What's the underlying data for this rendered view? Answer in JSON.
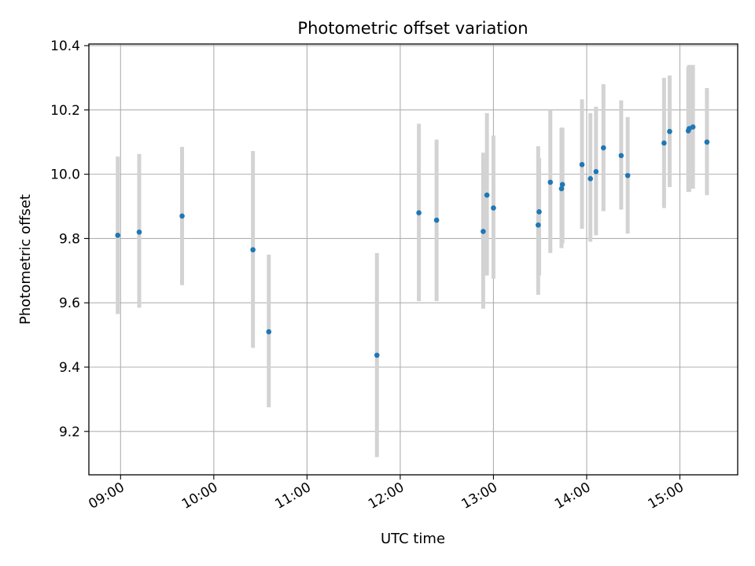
{
  "chart_data": {
    "type": "scatter",
    "title": "Photometric offset variation",
    "xlabel": "UTC time",
    "ylabel": "Photometric offset",
    "xlim": [
      8.66,
      15.62
    ],
    "ylim": [
      9.065,
      10.405
    ],
    "grid": true,
    "x_ticks": [
      {
        "value": 9,
        "label": "09:00"
      },
      {
        "value": 10,
        "label": "10:00"
      },
      {
        "value": 11,
        "label": "11:00"
      },
      {
        "value": 12,
        "label": "12:00"
      },
      {
        "value": 13,
        "label": "13:00"
      },
      {
        "value": 14,
        "label": "14:00"
      },
      {
        "value": 15,
        "label": "15:00"
      }
    ],
    "y_ticks": [
      {
        "value": 9.2,
        "label": "9.2"
      },
      {
        "value": 9.4,
        "label": "9.4"
      },
      {
        "value": 9.6,
        "label": "9.6"
      },
      {
        "value": 9.8,
        "label": "9.8"
      },
      {
        "value": 10.0,
        "label": "10.0"
      },
      {
        "value": 10.2,
        "label": "10.2"
      },
      {
        "value": 10.4,
        "label": "10.4"
      }
    ],
    "marker_color": "#1f77b4",
    "errorbar_color": "#d3d3d3",
    "points": [
      {
        "time": "08:58",
        "x": 8.97,
        "y": 9.81,
        "low": 9.565,
        "high": 10.055
      },
      {
        "time": "09:12",
        "x": 9.2,
        "y": 9.82,
        "low": 9.585,
        "high": 10.063
      },
      {
        "time": "09:39",
        "x": 9.66,
        "y": 9.87,
        "low": 9.655,
        "high": 10.085
      },
      {
        "time": "10:24",
        "x": 10.42,
        "y": 9.765,
        "low": 9.46,
        "high": 10.072
      },
      {
        "time": "10:35",
        "x": 10.59,
        "y": 9.51,
        "low": 9.275,
        "high": 9.75
      },
      {
        "time": "11:45",
        "x": 11.75,
        "y": 9.437,
        "low": 9.12,
        "high": 9.755
      },
      {
        "time": "12:12",
        "x": 12.2,
        "y": 9.88,
        "low": 9.605,
        "high": 10.157
      },
      {
        "time": "12:24",
        "x": 12.39,
        "y": 9.857,
        "low": 9.605,
        "high": 10.108
      },
      {
        "time": "12:53",
        "x": 12.89,
        "y": 9.822,
        "low": 9.582,
        "high": 10.067
      },
      {
        "time": "12:56",
        "x": 12.93,
        "y": 9.935,
        "low": 9.685,
        "high": 10.19
      },
      {
        "time": "13:00",
        "x": 13.0,
        "y": 9.895,
        "low": 9.675,
        "high": 10.12
      },
      {
        "time": "13:28",
        "x": 13.48,
        "y": 9.842,
        "low": 9.625,
        "high": 10.087
      },
      {
        "time": "13:29",
        "x": 13.49,
        "y": 9.883,
        "low": 9.685,
        "high": 10.05
      },
      {
        "time": "13:36",
        "x": 13.61,
        "y": 9.975,
        "low": 9.755,
        "high": 10.2
      },
      {
        "time": "13:43",
        "x": 13.73,
        "y": 9.955,
        "low": 9.77,
        "high": 10.145
      },
      {
        "time": "13:44",
        "x": 13.74,
        "y": 9.968,
        "low": 9.785,
        "high": 10.145
      },
      {
        "time": "13:57",
        "x": 13.95,
        "y": 10.03,
        "low": 9.83,
        "high": 10.233
      },
      {
        "time": "14:02",
        "x": 14.04,
        "y": 9.986,
        "low": 9.79,
        "high": 10.19
      },
      {
        "time": "14:06",
        "x": 14.1,
        "y": 10.008,
        "low": 9.81,
        "high": 10.21
      },
      {
        "time": "14:10",
        "x": 14.18,
        "y": 10.082,
        "low": 9.885,
        "high": 10.28
      },
      {
        "time": "14:22",
        "x": 14.37,
        "y": 10.058,
        "low": 9.89,
        "high": 10.23
      },
      {
        "time": "14:26",
        "x": 14.44,
        "y": 9.996,
        "low": 9.815,
        "high": 10.178
      },
      {
        "time": "14:50",
        "x": 14.83,
        "y": 10.097,
        "low": 9.895,
        "high": 10.3
      },
      {
        "time": "14:53",
        "x": 14.89,
        "y": 10.133,
        "low": 9.96,
        "high": 10.307
      },
      {
        "time": "15:05",
        "x": 15.09,
        "y": 10.135,
        "low": 9.945,
        "high": 10.335
      },
      {
        "time": "15:06",
        "x": 15.1,
        "y": 10.142,
        "low": 9.945,
        "high": 10.34
      },
      {
        "time": "15:08",
        "x": 15.14,
        "y": 10.147,
        "low": 9.955,
        "high": 10.34
      },
      {
        "time": "15:17",
        "x": 15.29,
        "y": 10.1,
        "low": 9.935,
        "high": 10.268
      }
    ]
  }
}
